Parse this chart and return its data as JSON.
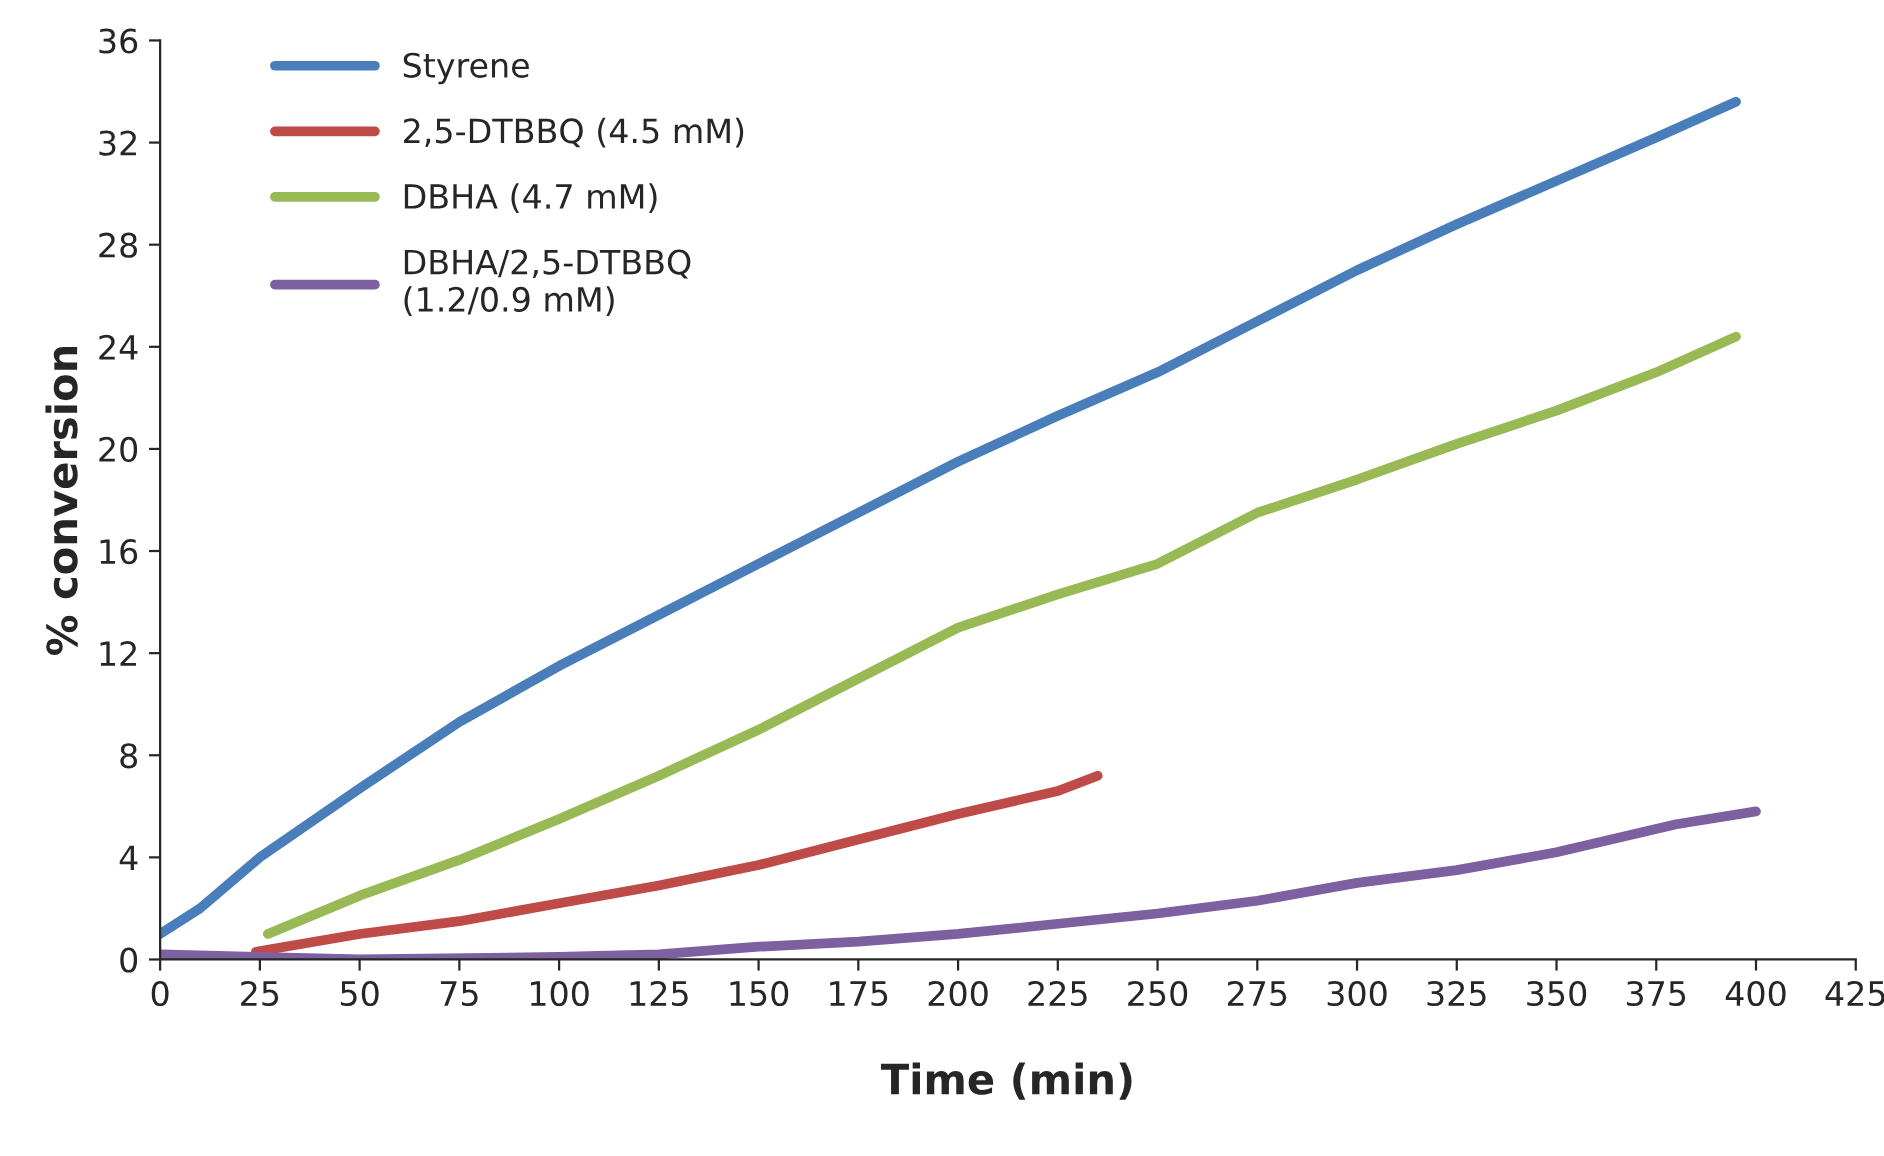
{
  "chart_data": {
    "type": "line",
    "xlabel": "Time (min)",
    "ylabel": "% conversion",
    "xlim": [
      0,
      425
    ],
    "xticks": [
      0,
      25,
      50,
      75,
      100,
      125,
      150,
      175,
      200,
      225,
      250,
      275,
      300,
      325,
      350,
      375,
      400,
      425
    ],
    "ylim": [
      0,
      36
    ],
    "yticks": [
      0,
      4,
      8,
      12,
      16,
      20,
      24,
      28,
      32,
      36
    ],
    "grid": false,
    "legend": "top left",
    "marker": "none",
    "line_style": "solid",
    "series": [
      {
        "name": "Styrene",
        "color": "#4a7ebb",
        "x": [
          0,
          10,
          25,
          50,
          75,
          100,
          125,
          150,
          175,
          200,
          225,
          250,
          275,
          300,
          325,
          350,
          375,
          395
        ],
        "values": [
          1,
          2,
          4,
          6.7,
          9.3,
          11.5,
          13.5,
          15.5,
          17.5,
          19.5,
          21.3,
          23,
          25,
          27,
          28.8,
          30.5,
          32.2,
          33.6
        ]
      },
      {
        "name": "2,5-DTBBQ (4.5 mM)",
        "color": "#be4b48",
        "x": [
          24,
          50,
          75,
          100,
          125,
          150,
          175,
          200,
          225,
          235
        ],
        "values": [
          0.3,
          1,
          1.5,
          2.2,
          2.9,
          3.7,
          4.7,
          5.7,
          6.6,
          7.2
        ]
      },
      {
        "name": "DBHA (4.7 mM)",
        "color": "#98b954",
        "x": [
          27,
          50,
          75,
          100,
          125,
          150,
          175,
          200,
          225,
          250,
          275,
          300,
          325,
          350,
          375,
          395
        ],
        "values": [
          1,
          2.5,
          3.9,
          5.5,
          7.2,
          9,
          11,
          13,
          14.3,
          15.5,
          17.5,
          18.8,
          20.2,
          21.5,
          23,
          24.4
        ]
      },
      {
        "name": "DBHA/2,5-DTBBQ\n(1.2/0.9 mM)",
        "color": "#7d60a0",
        "x": [
          0,
          50,
          100,
          125,
          150,
          175,
          200,
          225,
          250,
          275,
          300,
          325,
          350,
          380,
          400
        ],
        "values": [
          0.2,
          0,
          0.1,
          0.2,
          0.5,
          0.7,
          1,
          1.4,
          1.8,
          2.3,
          3,
          3.5,
          4.2,
          5.3,
          5.8
        ]
      }
    ]
  }
}
